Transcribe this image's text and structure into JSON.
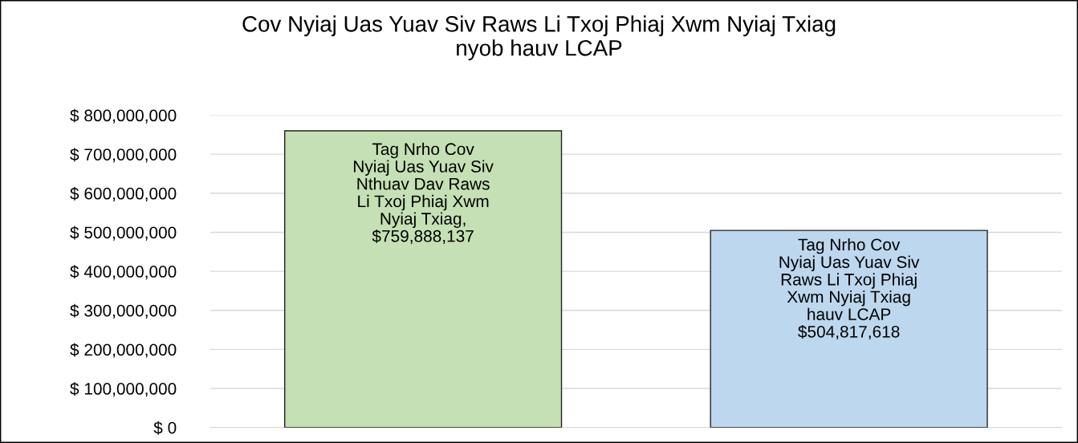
{
  "chart_data": {
    "type": "bar",
    "title": "Cov Nyiaj Uas Yuav Siv Raws Li Txoj Phiaj Xwm Nyiaj Txiag\nnyob hauv LCAP",
    "categories": [
      null,
      null
    ],
    "values": [
      759888137,
      504817618
    ],
    "colors": [
      "#c5e0b4",
      "#bdd7ee"
    ],
    "value_labels": [
      "Tag Nrho Cov\nNyiaj Uas Yuav Siv\nNthuav Dav Raws\nLi Txoj Phiaj Xwm\nNyiaj Txiag,\n$759,888,137",
      "Tag Nrho Cov\nNyiaj Uas Yuav Siv\nRaws Li Txoj Phiaj\nXwm Nyiaj Txiag\nhauv LCAP\n$504,817,618"
    ],
    "ylim": [
      0,
      800000000
    ],
    "yticks": [
      {
        "value": 0,
        "label": "$ 0"
      },
      {
        "value": 100000000,
        "label": "$ 100,000,000"
      },
      {
        "value": 200000000,
        "label": "$ 200,000,000"
      },
      {
        "value": 300000000,
        "label": "$ 300,000,000"
      },
      {
        "value": 400000000,
        "label": "$ 400,000,000"
      },
      {
        "value": 500000000,
        "label": "$ 500,000,000"
      },
      {
        "value": 600000000,
        "label": "$ 600,000,000"
      },
      {
        "value": 700000000,
        "label": "$ 700,000,000"
      },
      {
        "value": 800000000,
        "label": "$ 800,000,000"
      }
    ],
    "grid": "y",
    "legend": false
  }
}
